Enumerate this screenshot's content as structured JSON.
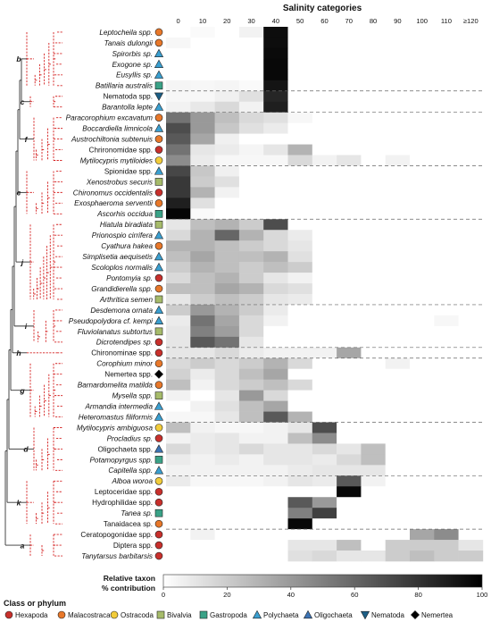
{
  "chart_data": {
    "type": "heatmap",
    "title": "Salinity categories",
    "x_categories": [
      "0",
      "10",
      "20",
      "30",
      "40",
      "50",
      "60",
      "70",
      "80",
      "90",
      "100",
      "110",
      "≥120"
    ],
    "colorbar": {
      "label_line1": "Relative taxon",
      "label_line2": "% contribution",
      "min": 0,
      "max": 100,
      "ticks": [
        0,
        20,
        40,
        60,
        80,
        100
      ]
    },
    "value_encoding": "grayscale, white = 0, black = 100",
    "clades": [
      "b",
      "c",
      "f",
      "e",
      "j",
      "i",
      "h",
      "g",
      "d",
      "k",
      "a"
    ],
    "class_colors": {
      "Hexapoda": "#c8302c",
      "Malacostraca": "#e8782a",
      "Ostracoda": "#f2cc3a",
      "Bivalvia": "#a6bb6a",
      "Gastropoda": "#3aa287",
      "Polychaeta": "#3a9fd0",
      "Oligochaeta": "#3d74b5",
      "Nematoda": "#1c5f86",
      "Nemertea": "#000000"
    },
    "legend": {
      "title": "Class or phylum",
      "entries": [
        "Hexapoda",
        "Malacostraca",
        "Ostracoda",
        "Bivalvia",
        "Gastropoda",
        "Polychaeta",
        "Oligochaeta",
        "Nematoda",
        "Nemertea"
      ]
    },
    "rows": [
      {
        "taxon": "Leptocheila spp.",
        "italic": true,
        "class": "Malacostraca",
        "values": [
          0,
          2,
          0,
          5,
          95,
          0,
          0,
          0,
          0,
          0,
          0,
          0,
          0
        ]
      },
      {
        "taxon": "Tanais dulongii",
        "italic": true,
        "class": "Malacostraca",
        "values": [
          3,
          0,
          0,
          0,
          95,
          0,
          0,
          0,
          0,
          0,
          0,
          0,
          0
        ]
      },
      {
        "taxon": "Spirorbis sp.",
        "italic": true,
        "class": "Polychaeta",
        "values": [
          0,
          0,
          0,
          0,
          96,
          0,
          0,
          0,
          0,
          0,
          0,
          0,
          0
        ]
      },
      {
        "taxon": "Exogone sp.",
        "italic": true,
        "class": "Polychaeta",
        "values": [
          0,
          0,
          0,
          0,
          97,
          0,
          0,
          0,
          0,
          0,
          0,
          0,
          0
        ]
      },
      {
        "taxon": "Eusyllis sp.",
        "italic": true,
        "class": "Polychaeta",
        "values": [
          0,
          0,
          0,
          0,
          97,
          0,
          0,
          0,
          0,
          0,
          0,
          0,
          0
        ]
      },
      {
        "taxon": "Batillaria australis",
        "italic": true,
        "class": "Gastropoda",
        "values": [
          4,
          3,
          4,
          2,
          92,
          0,
          0,
          0,
          0,
          0,
          0,
          0,
          0
        ]
      },
      {
        "taxon": "Nematoda spp.",
        "italic": false,
        "class": "Nematoda",
        "values": [
          3,
          3,
          6,
          12,
          85,
          0,
          0,
          0,
          0,
          0,
          0,
          0,
          0
        ]
      },
      {
        "taxon": "Barantolla lepte",
        "italic": true,
        "class": "Polychaeta",
        "values": [
          5,
          9,
          15,
          5,
          88,
          0,
          0,
          0,
          0,
          0,
          0,
          0,
          0
        ]
      },
      {
        "taxon": "Paracorophium excavatum",
        "italic": true,
        "class": "Malacostraca",
        "values": [
          55,
          40,
          25,
          15,
          12,
          3,
          0,
          0,
          0,
          0,
          0,
          0,
          0
        ]
      },
      {
        "taxon": "Boccardiella limnicola",
        "italic": true,
        "class": "Polychaeta",
        "values": [
          70,
          40,
          22,
          12,
          8,
          0,
          0,
          0,
          0,
          0,
          0,
          0,
          0
        ]
      },
      {
        "taxon": "Austrochiltonia subtenuis",
        "italic": true,
        "class": "Malacostraca",
        "values": [
          65,
          35,
          6,
          0,
          0,
          0,
          0,
          0,
          0,
          0,
          0,
          0,
          0
        ]
      },
      {
        "taxon": "Chrironomidae spp.",
        "italic": false,
        "class": "Hexapoda",
        "values": [
          55,
          10,
          8,
          4,
          10,
          30,
          0,
          0,
          0,
          0,
          0,
          0,
          0
        ]
      },
      {
        "taxon": "Mytilocypris mytiloides",
        "italic": true,
        "class": "Ostracoda",
        "values": [
          45,
          8,
          3,
          3,
          3,
          15,
          5,
          10,
          0,
          5,
          0,
          0,
          0
        ]
      },
      {
        "taxon": "Spionidae spp.",
        "italic": false,
        "class": "Polychaeta",
        "values": [
          72,
          22,
          6,
          0,
          0,
          0,
          0,
          0,
          0,
          0,
          0,
          0,
          0
        ]
      },
      {
        "taxon": "Xenostrobus securis",
        "italic": true,
        "class": "Bivalvia",
        "values": [
          78,
          20,
          12,
          0,
          0,
          0,
          0,
          0,
          0,
          0,
          0,
          0,
          0
        ]
      },
      {
        "taxon": "Chironomus occidentalis",
        "italic": true,
        "class": "Hexapoda",
        "values": [
          78,
          30,
          5,
          0,
          0,
          0,
          0,
          0,
          0,
          0,
          0,
          0,
          0
        ]
      },
      {
        "taxon": "Exosphaeroma serventii",
        "italic": true,
        "class": "Malacostraca",
        "values": [
          88,
          12,
          0,
          0,
          0,
          0,
          0,
          0,
          0,
          0,
          0,
          0,
          0
        ]
      },
      {
        "taxon": "Ascorhis occidua",
        "italic": true,
        "class": "Gastropoda",
        "values": [
          98,
          2,
          0,
          0,
          0,
          0,
          0,
          0,
          0,
          0,
          0,
          0,
          0
        ]
      },
      {
        "taxon": "Hiatula biradiata",
        "italic": true,
        "class": "Bivalvia",
        "values": [
          10,
          25,
          30,
          20,
          70,
          0,
          0,
          0,
          0,
          0,
          0,
          0,
          0
        ]
      },
      {
        "taxon": "Prionospio cirrifera",
        "italic": true,
        "class": "Polychaeta",
        "values": [
          15,
          30,
          60,
          30,
          15,
          8,
          0,
          0,
          0,
          0,
          0,
          0,
          0
        ]
      },
      {
        "taxon": "Cyathura hakea",
        "italic": true,
        "class": "Malacostraca",
        "values": [
          30,
          30,
          25,
          20,
          15,
          10,
          0,
          0,
          0,
          0,
          0,
          0,
          0
        ]
      },
      {
        "taxon": "Simplisetia aequisetis",
        "italic": true,
        "class": "Polychaeta",
        "values": [
          25,
          35,
          25,
          25,
          30,
          12,
          0,
          0,
          0,
          0,
          0,
          0,
          0
        ]
      },
      {
        "taxon": "Scoloplos normalis",
        "italic": true,
        "class": "Polychaeta",
        "values": [
          20,
          30,
          25,
          20,
          25,
          20,
          0,
          0,
          0,
          0,
          0,
          0,
          0
        ]
      },
      {
        "taxon": "Pontomyia sp.",
        "italic": true,
        "class": "Hexapoda",
        "values": [
          15,
          25,
          30,
          20,
          10,
          5,
          0,
          0,
          0,
          0,
          0,
          0,
          0
        ]
      },
      {
        "taxon": "Grandidierella spp.",
        "italic": true,
        "class": "Malacostraca",
        "values": [
          25,
          25,
          35,
          30,
          15,
          12,
          0,
          0,
          0,
          0,
          0,
          0,
          0
        ]
      },
      {
        "taxon": "Arthritica semen",
        "italic": true,
        "class": "Bivalvia",
        "values": [
          10,
          20,
          25,
          20,
          10,
          8,
          0,
          0,
          0,
          0,
          0,
          0,
          0
        ]
      },
      {
        "taxon": "Desdemona ornata",
        "italic": true,
        "class": "Polychaeta",
        "values": [
          20,
          40,
          30,
          20,
          8,
          0,
          0,
          0,
          0,
          0,
          0,
          0,
          0
        ]
      },
      {
        "taxon": "Pseudopolydora cf. kempi",
        "italic": true,
        "class": "Polychaeta",
        "values": [
          8,
          55,
          35,
          15,
          5,
          0,
          0,
          0,
          0,
          0,
          0,
          3,
          0
        ]
      },
      {
        "taxon": "Fluviolanatus subtortus",
        "italic": true,
        "class": "Bivalvia",
        "values": [
          10,
          50,
          38,
          15,
          0,
          0,
          0,
          0,
          0,
          0,
          0,
          0,
          0
        ]
      },
      {
        "taxon": "Dicrotendipes sp.",
        "italic": true,
        "class": "Hexapoda",
        "values": [
          10,
          65,
          55,
          10,
          0,
          0,
          0,
          0,
          0,
          0,
          0,
          0,
          0
        ]
      },
      {
        "taxon": "Chironominae spp.",
        "italic": false,
        "class": "Hexapoda",
        "values": [
          10,
          10,
          15,
          8,
          5,
          5,
          5,
          35,
          0,
          0,
          0,
          0,
          0
        ]
      },
      {
        "taxon": "Corophium minor",
        "italic": true,
        "class": "Malacostraca",
        "values": [
          15,
          20,
          15,
          20,
          30,
          15,
          0,
          0,
          0,
          5,
          0,
          0,
          0
        ]
      },
      {
        "taxon": "Nemertea spp.",
        "italic": false,
        "class": "Nemertea",
        "values": [
          18,
          8,
          15,
          25,
          35,
          0,
          0,
          0,
          0,
          0,
          0,
          0,
          0
        ]
      },
      {
        "taxon": "Barnardomelita matilda",
        "italic": true,
        "class": "Malacostraca",
        "values": [
          25,
          5,
          15,
          20,
          25,
          15,
          0,
          0,
          0,
          0,
          0,
          0,
          0
        ]
      },
      {
        "taxon": "Mysella spp.",
        "italic": true,
        "class": "Bivalvia",
        "values": [
          5,
          0,
          10,
          40,
          15,
          0,
          0,
          0,
          0,
          0,
          0,
          0,
          0
        ]
      },
      {
        "taxon": "Armandia intermedia",
        "italic": true,
        "class": "Polychaeta",
        "values": [
          0,
          5,
          12,
          25,
          35,
          0,
          0,
          0,
          0,
          0,
          0,
          0,
          0
        ]
      },
      {
        "taxon": "Heteromastus filiformis",
        "italic": true,
        "class": "Polychaeta",
        "values": [
          3,
          3,
          10,
          25,
          65,
          30,
          0,
          0,
          0,
          0,
          0,
          0,
          0
        ]
      },
      {
        "taxon": "Mytilocypris ambiguosa",
        "italic": true,
        "class": "Ostracoda",
        "values": [
          25,
          5,
          3,
          3,
          5,
          10,
          70,
          0,
          0,
          0,
          0,
          0,
          0
        ]
      },
      {
        "taxon": "Procladius sp.",
        "italic": true,
        "class": "Hexapoda",
        "values": [
          5,
          8,
          10,
          5,
          5,
          25,
          45,
          0,
          0,
          0,
          0,
          0,
          0
        ]
      },
      {
        "taxon": "Oligochaeta spp.",
        "italic": false,
        "class": "Oligochaeta",
        "values": [
          15,
          8,
          10,
          15,
          10,
          10,
          15,
          10,
          25,
          0,
          0,
          0,
          0
        ]
      },
      {
        "taxon": "Potamopyrgus spp.",
        "italic": true,
        "class": "Gastropoda",
        "values": [
          8,
          5,
          8,
          5,
          10,
          10,
          8,
          15,
          25,
          0,
          0,
          0,
          0
        ]
      },
      {
        "taxon": "Capitella spp.",
        "italic": true,
        "class": "Polychaeta",
        "values": [
          5,
          5,
          5,
          5,
          5,
          8,
          10,
          10,
          10,
          0,
          0,
          0,
          0
        ]
      },
      {
        "taxon": "Alboa woroa",
        "italic": true,
        "class": "Ostracoda",
        "values": [
          8,
          3,
          3,
          3,
          5,
          10,
          8,
          65,
          5,
          0,
          0,
          0,
          0
        ]
      },
      {
        "taxon": "Leptoceridae spp.",
        "italic": false,
        "class": "Hexapoda",
        "values": [
          0,
          0,
          0,
          0,
          0,
          0,
          0,
          97,
          0,
          0,
          0,
          0,
          0
        ]
      },
      {
        "taxon": "Hydrophilidae spp.",
        "italic": false,
        "class": "Hexapoda",
        "values": [
          0,
          0,
          0,
          0,
          0,
          65,
          40,
          0,
          0,
          0,
          0,
          0,
          0
        ]
      },
      {
        "taxon": "Tanea sp.",
        "italic": true,
        "class": "Gastropoda",
        "values": [
          0,
          0,
          0,
          0,
          0,
          50,
          75,
          0,
          0,
          0,
          0,
          0,
          0
        ]
      },
      {
        "taxon": "Tanaidacea sp.",
        "italic": false,
        "class": "Malacostraca",
        "values": [
          0,
          0,
          0,
          0,
          0,
          97,
          0,
          0,
          0,
          0,
          0,
          0,
          0
        ]
      },
      {
        "taxon": "Ceratopogonidae spp.",
        "italic": false,
        "class": "Hexapoda",
        "values": [
          0,
          5,
          0,
          0,
          0,
          0,
          0,
          0,
          0,
          0,
          35,
          45,
          0
        ]
      },
      {
        "taxon": "Diptera spp.",
        "italic": false,
        "class": "Hexapoda",
        "values": [
          0,
          0,
          0,
          0,
          0,
          10,
          10,
          25,
          0,
          20,
          20,
          20,
          10
        ]
      },
      {
        "taxon": "Tanytarsus barbitarsis",
        "italic": true,
        "class": "Hexapoda",
        "values": [
          0,
          0,
          0,
          0,
          0,
          12,
          15,
          10,
          10,
          20,
          25,
          20,
          20
        ]
      }
    ]
  }
}
